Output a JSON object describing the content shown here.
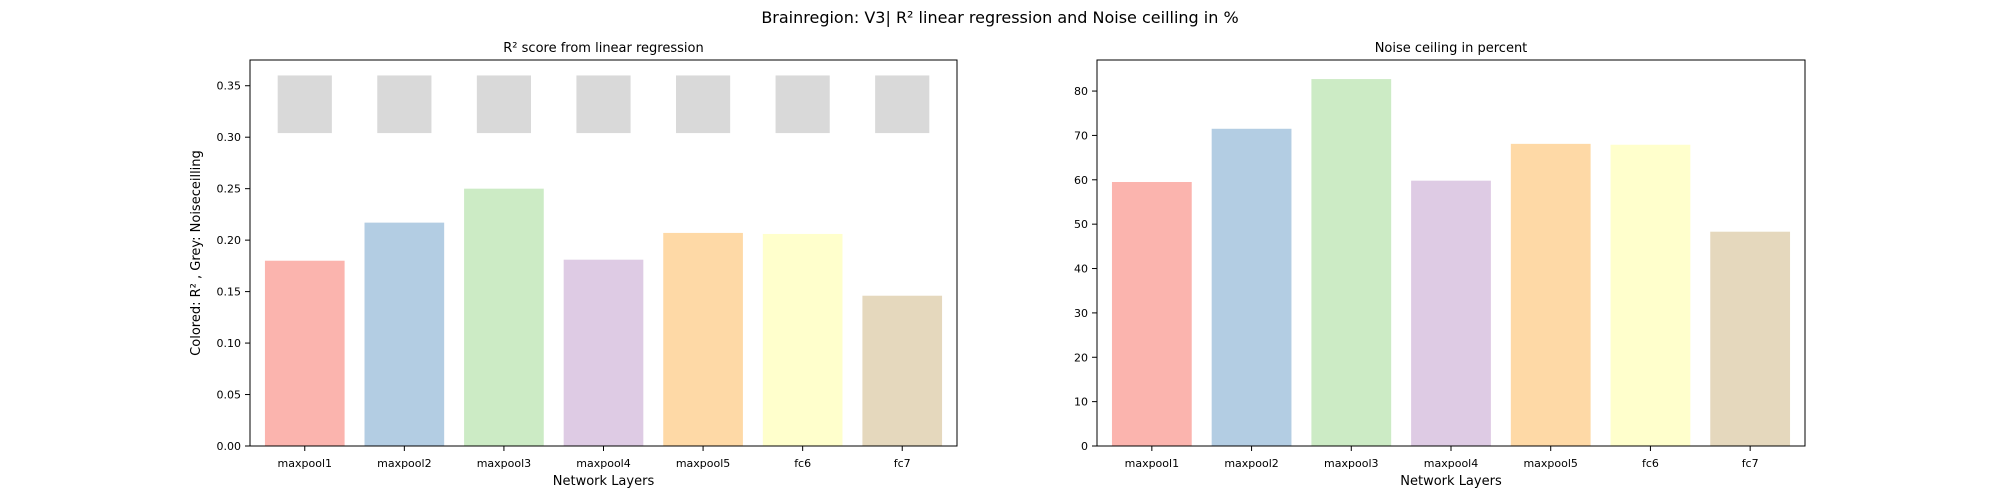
{
  "figure": {
    "suptitle": "Brainregion: V3| R² linear regression and Noise ceilling in %"
  },
  "chart_data": [
    {
      "type": "bar",
      "title": "R² score from linear regression",
      "xlabel": "Network Layers",
      "ylabel": "Colored: R² , Grey: Noiseceilling",
      "categories": [
        "maxpool1",
        "maxpool2",
        "maxpool3",
        "maxpool4",
        "maxpool5",
        "fc6",
        "fc7"
      ],
      "colors": [
        "#fbb4ae",
        "#b3cde3",
        "#ccebc5",
        "#decbe4",
        "#fed9a6",
        "#ffffcc",
        "#e5d8bd"
      ],
      "series": [
        {
          "values": [
            0.18,
            0.217,
            0.25,
            0.181,
            0.207,
            0.206,
            0.146
          ]
        }
      ],
      "noise_ceiling_bars": {
        "color": "#d9d9d9",
        "bottom": [
          0.304,
          0.304,
          0.304,
          0.304,
          0.304,
          0.304,
          0.304
        ],
        "top": [
          0.36,
          0.36,
          0.36,
          0.36,
          0.36,
          0.36,
          0.36
        ]
      },
      "ylim": [
        0,
        0.375
      ],
      "yticks": [
        "0.00",
        "0.05",
        "0.10",
        "0.15",
        "0.20",
        "0.25",
        "0.30",
        "0.35"
      ],
      "grid": false
    },
    {
      "type": "bar",
      "title": "Noise ceiling in percent",
      "xlabel": "Network Layers",
      "ylabel": "",
      "categories": [
        "maxpool1",
        "maxpool2",
        "maxpool3",
        "maxpool4",
        "maxpool5",
        "fc6",
        "fc7"
      ],
      "colors": [
        "#fbb4ae",
        "#b3cde3",
        "#ccebc5",
        "#decbe4",
        "#fed9a6",
        "#ffffcc",
        "#e5d8bd"
      ],
      "series": [
        {
          "values": [
            59.5,
            71.5,
            82.7,
            59.8,
            68.1,
            67.9,
            48.3
          ]
        }
      ],
      "ylim": [
        0,
        87
      ],
      "yticks": [
        "0",
        "10",
        "20",
        "30",
        "40",
        "50",
        "60",
        "70",
        "80"
      ],
      "grid": false
    }
  ]
}
